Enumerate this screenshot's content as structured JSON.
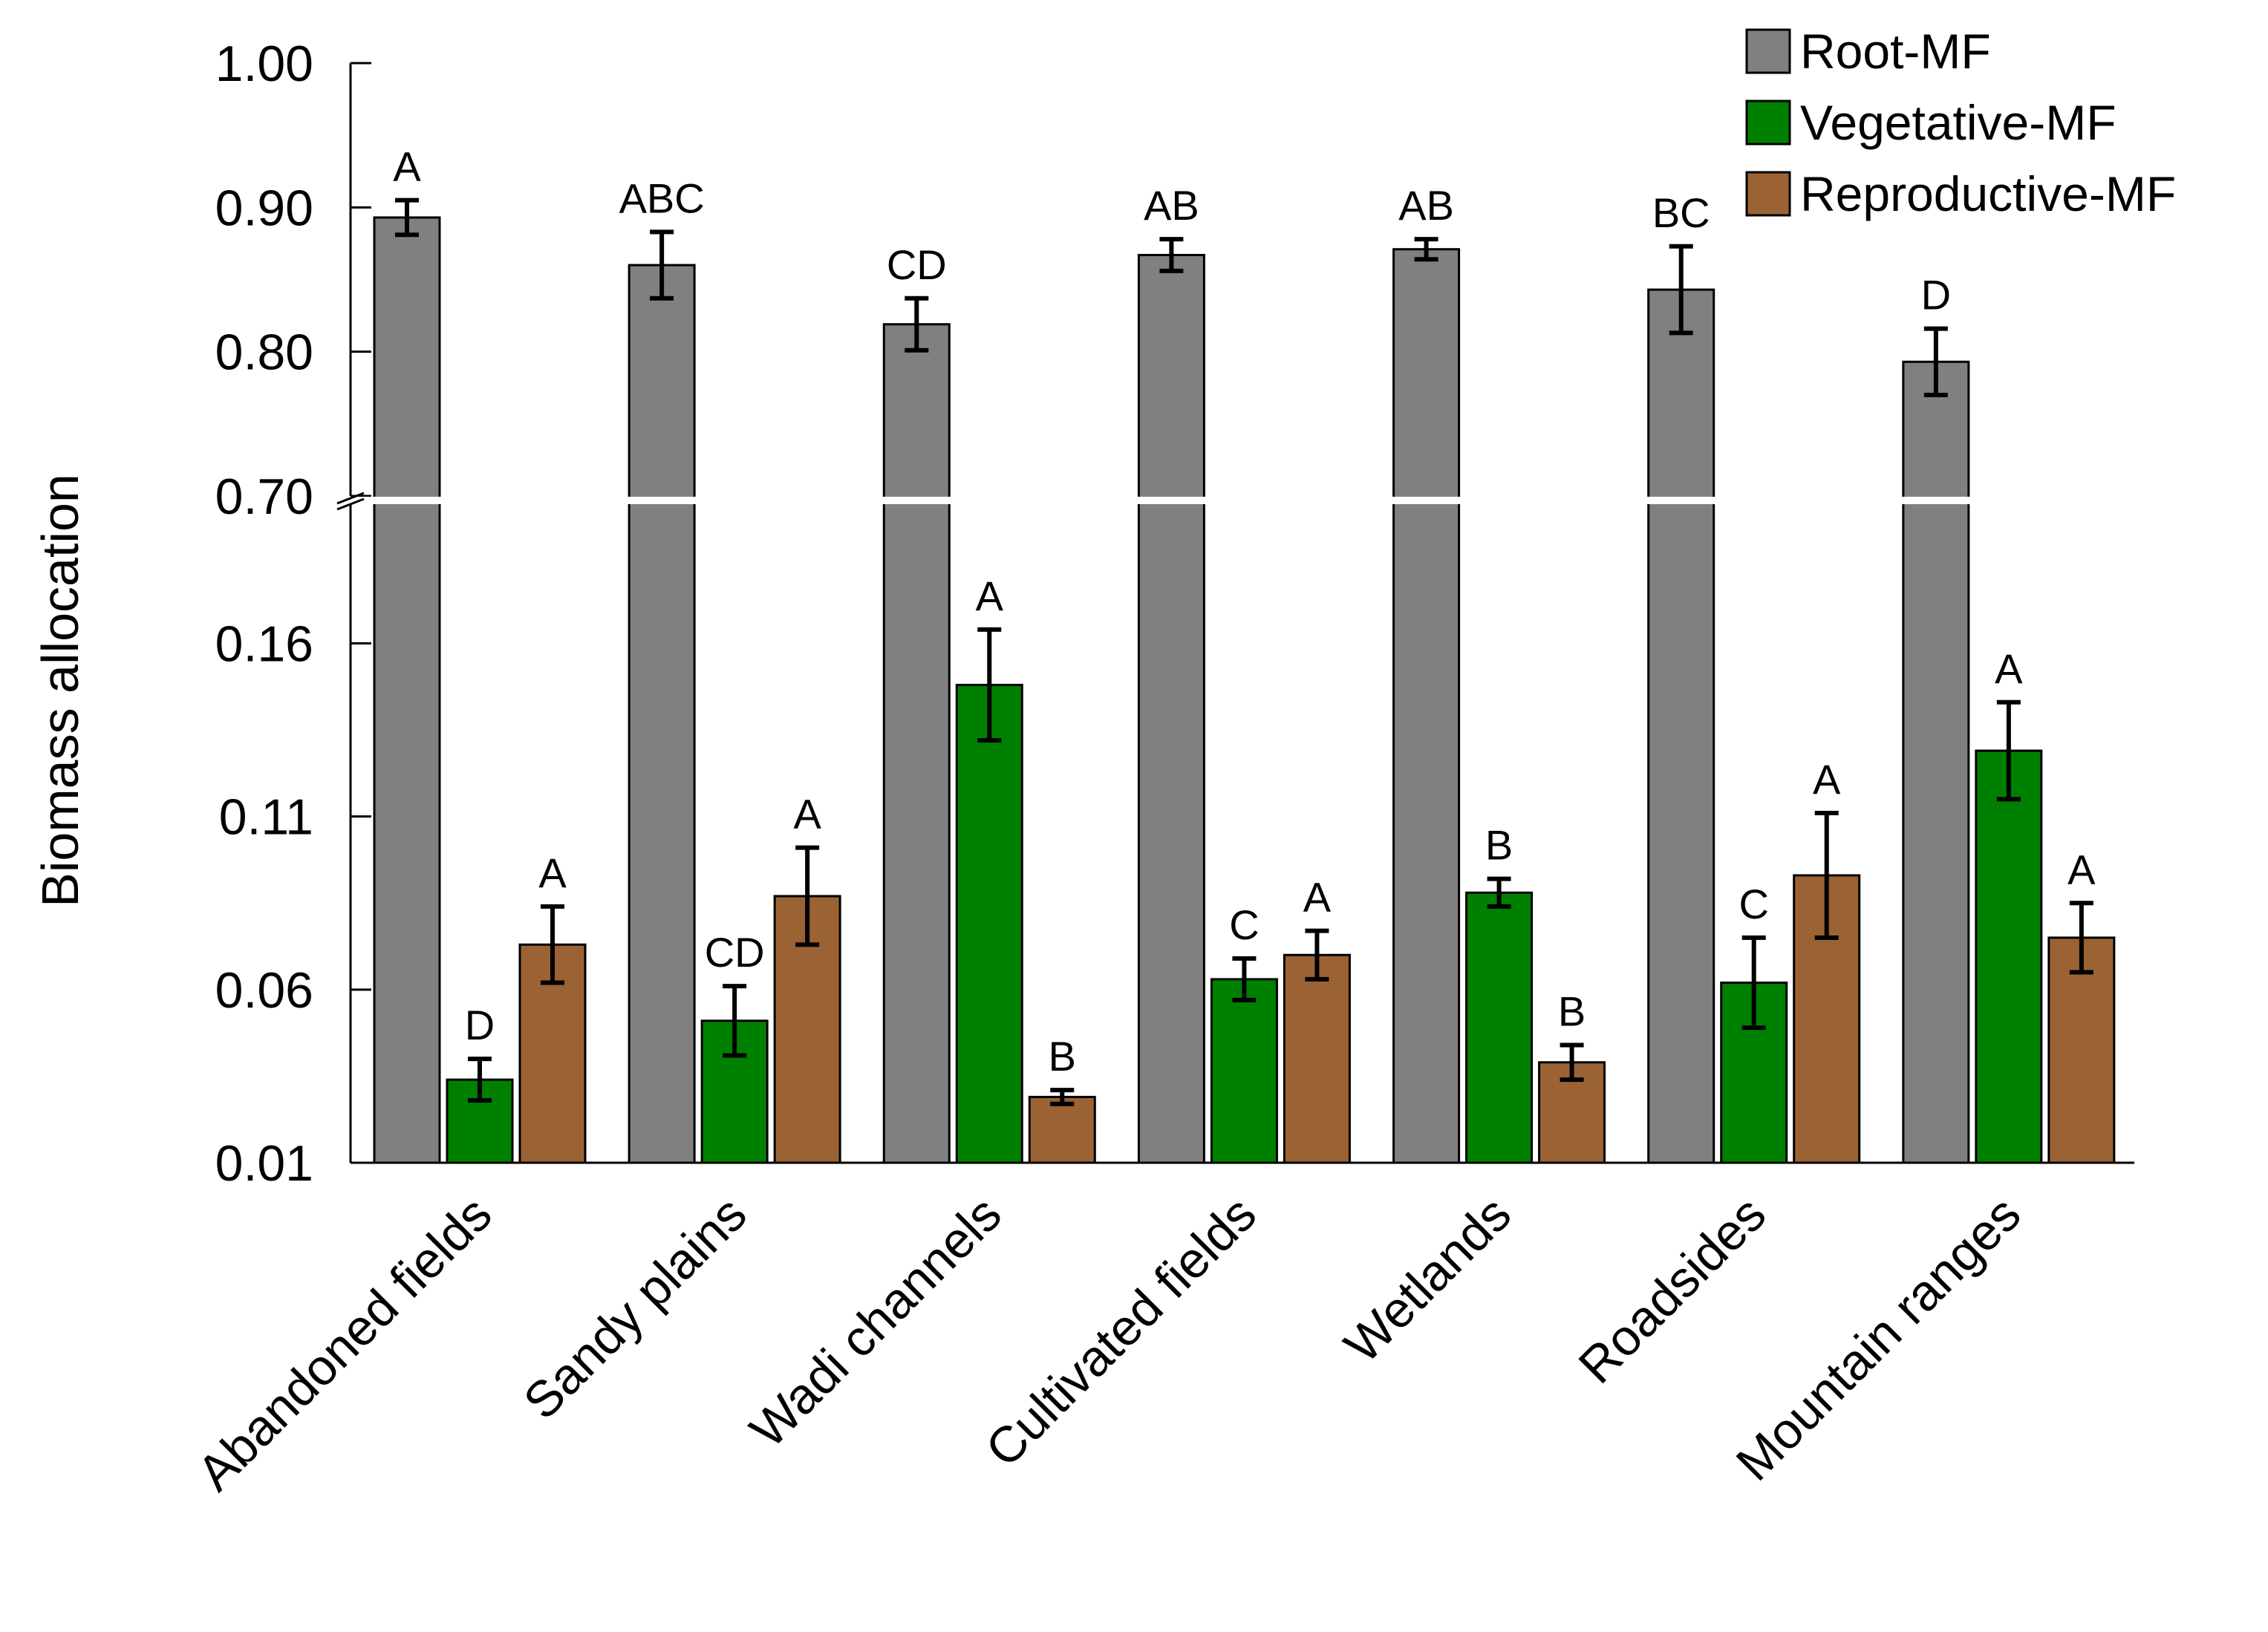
{
  "chart_data": {
    "type": "bar",
    "title": "",
    "xlabel": "",
    "ylabel": "Biomass allocation",
    "y_axis_break": {
      "upper_range": [
        0.7,
        1.0
      ],
      "lower_range": [
        0.01,
        0.2
      ],
      "upper_ticks": [
        "0.70",
        "0.80",
        "0.90",
        "1.00"
      ],
      "lower_ticks": [
        "0.01",
        "0.06",
        "0.11",
        "0.16"
      ]
    },
    "categories": [
      "Abandoned fields",
      "Sandy plains",
      "Wadi channels",
      "Cultivated fields",
      "Wetlands",
      "Roadsides",
      "Mountain ranges"
    ],
    "legend_position": "top-right",
    "series": [
      {
        "name": "Root-MF",
        "color": "#808080",
        "values": [
          0.893,
          0.86,
          0.819,
          0.867,
          0.871,
          0.843,
          0.793
        ],
        "errors": [
          0.012,
          0.023,
          0.018,
          0.011,
          0.007,
          0.03,
          0.023
        ],
        "letters": [
          "A",
          "ABC",
          "CD",
          "AB",
          "AB",
          "BC",
          "D"
        ]
      },
      {
        "name": "Vegetative-MF",
        "color": "#008000",
        "values": [
          0.034,
          0.051,
          0.148,
          0.063,
          0.088,
          0.062,
          0.129
        ],
        "errors": [
          0.006,
          0.01,
          0.016,
          0.006,
          0.004,
          0.013,
          0.014
        ],
        "letters": [
          "D",
          "CD",
          "A",
          "C",
          "B",
          "C",
          "A"
        ]
      },
      {
        "name": "Reproductive-MF",
        "color": "#9B6333",
        "values": [
          0.073,
          0.087,
          0.029,
          0.07,
          0.039,
          0.093,
          0.075
        ],
        "errors": [
          0.011,
          0.014,
          0.002,
          0.007,
          0.005,
          0.018,
          0.01
        ],
        "letters": [
          "A",
          "A",
          "B",
          "A",
          "B",
          "A",
          "A"
        ]
      }
    ]
  }
}
